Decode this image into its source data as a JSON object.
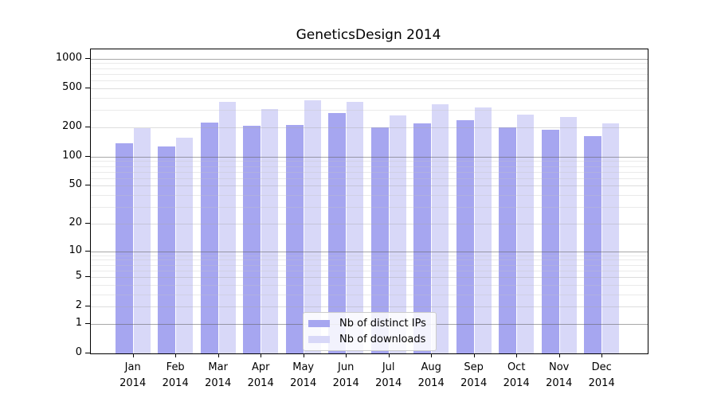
{
  "title": "GeneticsDesign 2014",
  "chart_data": {
    "type": "bar",
    "title": "GeneticsDesign 2014",
    "categories": [
      "Jan",
      "Feb",
      "Mar",
      "Apr",
      "May",
      "Jun",
      "Jul",
      "Aug",
      "Sep",
      "Oct",
      "Nov",
      "Dec"
    ],
    "category_year": "2014",
    "series": [
      {
        "name": "Nb of distinct IPs",
        "color": "#a6a6f0",
        "values": [
          138,
          127,
          225,
          205,
          209,
          277,
          200,
          219,
          234,
          199,
          190,
          163
        ]
      },
      {
        "name": "Nb of downloads",
        "color": "#d8d8f8",
        "values": [
          197,
          156,
          365,
          305,
          378,
          360,
          262,
          345,
          320,
          269,
          252,
          220
        ]
      }
    ],
    "y_axis": {
      "scale": "log10(v+1)",
      "tick_values": [
        0,
        1,
        2,
        5,
        10,
        20,
        50,
        100,
        200,
        500,
        1000
      ],
      "major_grid_values": [
        1,
        10,
        100,
        1000
      ],
      "mid_grid_values": [
        2,
        5,
        20,
        50,
        200,
        500
      ],
      "minor_grid_values": [
        3,
        4,
        6,
        7,
        8,
        9,
        30,
        40,
        60,
        70,
        80,
        90,
        300,
        400,
        600,
        700,
        800,
        900
      ],
      "y_max": 1250
    },
    "legend": {
      "position": "bottom-center",
      "entries": [
        "Nb of distinct IPs",
        "Nb of downloads"
      ]
    },
    "grid": true
  }
}
